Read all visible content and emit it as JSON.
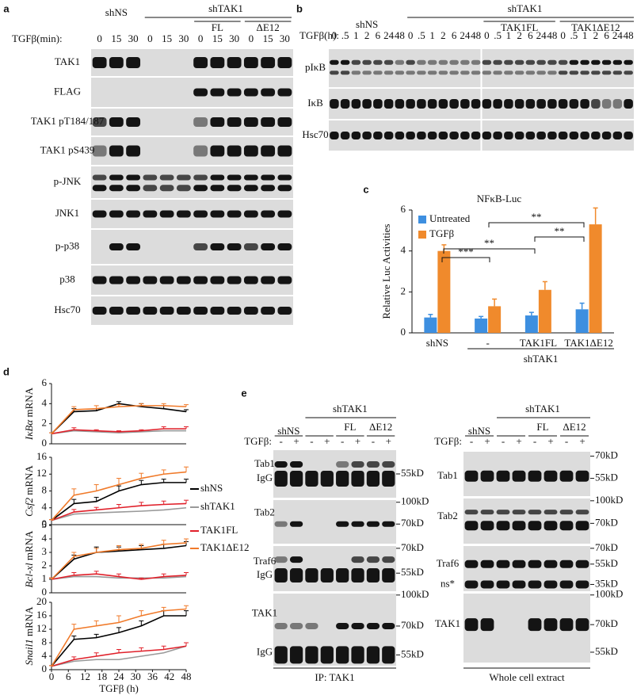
{
  "figure": {
    "a": {
      "label": "a",
      "header": [
        "shNS",
        "shTAK1"
      ],
      "sub": [
        "FL",
        "ΔE12"
      ],
      "time_label": "TGFβ(min):",
      "times": [
        "0",
        "15",
        "30"
      ],
      "rows": [
        "TAK1",
        "FLAG",
        "TAK1 pT184/187",
        "TAK1 pS439",
        "p-JNK",
        "JNK1",
        "p-p38",
        "p38",
        "Hsc70"
      ]
    },
    "b": {
      "label": "b",
      "header": [
        "shNS",
        "shTAK1"
      ],
      "sub": [
        "TAK1FL",
        "TAK1ΔE12"
      ],
      "time_label": "TGFβ(h):",
      "times": [
        "0",
        ".5",
        "1",
        "2",
        "6",
        "24",
        "48"
      ],
      "rows": [
        "pIκB",
        "IκB",
        "Hsc70"
      ]
    },
    "c": {
      "label": "c"
    },
    "d": {
      "label": "d"
    },
    "e": {
      "label": "e",
      "panels": [
        {
          "header": [
            "shNS",
            "shTAK1"
          ],
          "sub": [
            "FL",
            "ΔE12"
          ],
          "treat_label": "TGFβ:",
          "signs": [
            "-",
            "+"
          ],
          "rows": [
            {
              "labels": [
                "Tab1",
                "IgG"
              ],
              "markers": [
                "55kD"
              ]
            },
            {
              "labels": [
                "Tab2"
              ],
              "markers": [
                "100kD",
                "70kD"
              ]
            },
            {
              "labels": [
                "Traf6",
                "IgG"
              ],
              "markers": [
                "70kD",
                "55kD"
              ]
            },
            {
              "labels": [
                "TAK1",
                "IgG"
              ],
              "markers": [
                "100kD",
                "70kD",
                "55kD"
              ]
            }
          ],
          "footer": "IP: TAK1"
        },
        {
          "header": [
            "shNS",
            "shTAK1"
          ],
          "sub": [
            "FL",
            "ΔE12"
          ],
          "treat_label": "TGFβ:",
          "signs": [
            "-",
            "+"
          ],
          "rows": [
            {
              "labels": [
                "Tab1"
              ],
              "markers": [
                "70kD",
                "55kD"
              ]
            },
            {
              "labels": [
                "Tab2"
              ],
              "markers": [
                "100kD",
                "70kD"
              ]
            },
            {
              "labels": [
                "Traf6",
                "ns*"
              ],
              "markers": [
                "70kD",
                "55kD",
                "35kD"
              ]
            },
            {
              "labels": [
                "TAK1"
              ],
              "markers": [
                "100kD",
                "70kD",
                "55kD"
              ]
            }
          ],
          "footer": "Whole cell extract"
        }
      ]
    }
  },
  "chart_data": [
    {
      "type": "bar",
      "title": "NFκB-Luc",
      "y_label": "Relative Luc Activities",
      "categories": [
        "shNS",
        "-",
        "TAK1FL",
        "TAK1ΔE12"
      ],
      "group_label": "shTAK1",
      "series": [
        {
          "name": "Untreated",
          "color": "#3d8fe0",
          "values": [
            0.75,
            0.7,
            0.85,
            1.15
          ],
          "errors": [
            0.15,
            0.1,
            0.15,
            0.3
          ]
        },
        {
          "name": "TGFβ",
          "color": "#f08a2c",
          "values": [
            4.0,
            1.3,
            2.1,
            5.3
          ],
          "errors": [
            0.3,
            0.35,
            0.4,
            0.8
          ]
        }
      ],
      "ylim": [
        0,
        6
      ],
      "yticks": [
        0,
        2,
        4,
        6
      ],
      "legend": "upper left",
      "annotations": [
        "***",
        "**",
        "**",
        "**"
      ]
    },
    {
      "type": "line",
      "y_label": [
        "IκBα",
        "mRNA"
      ],
      "x": [
        0,
        8,
        16,
        24,
        32,
        40,
        48
      ],
      "xlim": [
        0,
        48
      ],
      "ylim": [
        0,
        6
      ],
      "yticks": [
        0,
        2,
        4,
        6
      ],
      "series": [
        {
          "color": "#000000",
          "values": [
            1,
            3.2,
            3.3,
            4.0,
            3.7,
            3.5,
            3.2
          ],
          "errors": [
            0.1,
            0.3,
            0.2,
            0.2,
            0.3,
            0.3,
            0.2
          ]
        },
        {
          "color": "#999999",
          "values": [
            1,
            1.3,
            1.2,
            1.1,
            1.2,
            1.3,
            1.3
          ]
        },
        {
          "color": "#e0202a",
          "values": [
            1,
            1.4,
            1.3,
            1.2,
            1.3,
            1.5,
            1.5
          ],
          "errors": [
            0.1,
            0.2,
            0.1,
            0.1,
            0.1,
            0.2,
            0.2
          ]
        },
        {
          "color": "#f07a2a",
          "values": [
            1,
            3.4,
            3.5,
            3.7,
            3.8,
            3.8,
            3.7
          ],
          "errors": [
            0.1,
            0.3,
            0.3,
            0.2,
            0.2,
            0.2,
            0.2
          ]
        }
      ]
    },
    {
      "type": "line",
      "y_label": [
        "Csf2",
        "mRNA"
      ],
      "x": [
        0,
        8,
        16,
        24,
        32,
        40,
        48
      ],
      "xlim": [
        0,
        48
      ],
      "ylim": [
        0,
        16
      ],
      "yticks": [
        0,
        4,
        8,
        12,
        16
      ],
      "legend": "right",
      "series": [
        {
          "name": "shNS",
          "color": "#000000",
          "values": [
            1,
            5,
            5.5,
            8,
            9.5,
            10,
            10
          ],
          "errors": [
            0.2,
            1,
            1,
            1.2,
            1,
            0.8,
            0.8
          ]
        },
        {
          "name": "shTAK1",
          "color": "#999999",
          "values": [
            1,
            2.5,
            2.8,
            3,
            3.2,
            3.5,
            4
          ]
        },
        {
          "name": "TAK1FL",
          "color": "#e0202a",
          "values": [
            1,
            3,
            3.5,
            4,
            4.5,
            4.8,
            5
          ],
          "errors": [
            0.2,
            0.6,
            0.6,
            0.8,
            0.8,
            0.8,
            0.8
          ]
        },
        {
          "name": "TAK1ΔE12",
          "color": "#f07a2a",
          "values": [
            1,
            7,
            8,
            9.5,
            11,
            12,
            12.5
          ],
          "errors": [
            0.2,
            1.5,
            1.5,
            1.5,
            1.2,
            1,
            1.2
          ]
        }
      ]
    },
    {
      "type": "line",
      "y_label": [
        "Bcl-xl",
        "mRNA"
      ],
      "x": [
        0,
        8,
        16,
        24,
        32,
        40,
        48
      ],
      "xlim": [
        0,
        48
      ],
      "ylim": [
        0,
        5
      ],
      "yticks": [
        0,
        1,
        2,
        3,
        4,
        5
      ],
      "series": [
        {
          "color": "#000000",
          "values": [
            1,
            2.5,
            3,
            3.1,
            3.2,
            3.3,
            3.5
          ],
          "errors": [
            0.1,
            0.3,
            0.4,
            0.3,
            0.3,
            0.3,
            0.3
          ]
        },
        {
          "color": "#999999",
          "values": [
            1,
            1.2,
            1.2,
            1.1,
            1.1,
            1.1,
            1.2
          ]
        },
        {
          "color": "#e0202a",
          "values": [
            1,
            1.3,
            1.4,
            1.2,
            1,
            1.2,
            1.3
          ],
          "errors": [
            0.1,
            0.2,
            0.2,
            0.2,
            0.1,
            0.2,
            0.2
          ]
        },
        {
          "color": "#f07a2a",
          "values": [
            1,
            2.7,
            3,
            3.2,
            3.3,
            3.6,
            3.7
          ],
          "errors": [
            0.1,
            0.3,
            0.3,
            0.3,
            0.3,
            0.3,
            0.3
          ]
        }
      ]
    },
    {
      "type": "line",
      "y_label": [
        "Snail1",
        "mRNA"
      ],
      "x": [
        0,
        8,
        16,
        24,
        32,
        40,
        48
      ],
      "x_label": "TGFβ (h)",
      "xlim": [
        0,
        48
      ],
      "xticks": [
        0,
        6,
        12,
        18,
        24,
        30,
        36,
        42,
        48
      ],
      "ylim": [
        0,
        20
      ],
      "yticks": [
        0,
        4,
        8,
        12,
        16,
        20
      ],
      "series": [
        {
          "color": "#000000",
          "values": [
            1,
            9,
            9.5,
            11,
            13,
            16,
            16
          ],
          "errors": [
            0.2,
            1,
            1,
            1.5,
            1.5,
            1.5,
            1.5
          ]
        },
        {
          "color": "#999999",
          "values": [
            1,
            2.5,
            3,
            3,
            4,
            5,
            7
          ]
        },
        {
          "color": "#e0202a",
          "values": [
            1,
            3,
            4,
            5,
            5.5,
            6,
            7
          ],
          "errors": [
            0.2,
            0.8,
            1,
            1,
            1,
            1,
            1
          ]
        },
        {
          "color": "#f07a2a",
          "values": [
            1,
            12,
            13,
            14,
            16,
            17.5,
            18
          ],
          "errors": [
            0.2,
            1.5,
            1.5,
            2,
            1.5,
            1,
            1
          ]
        }
      ]
    }
  ]
}
